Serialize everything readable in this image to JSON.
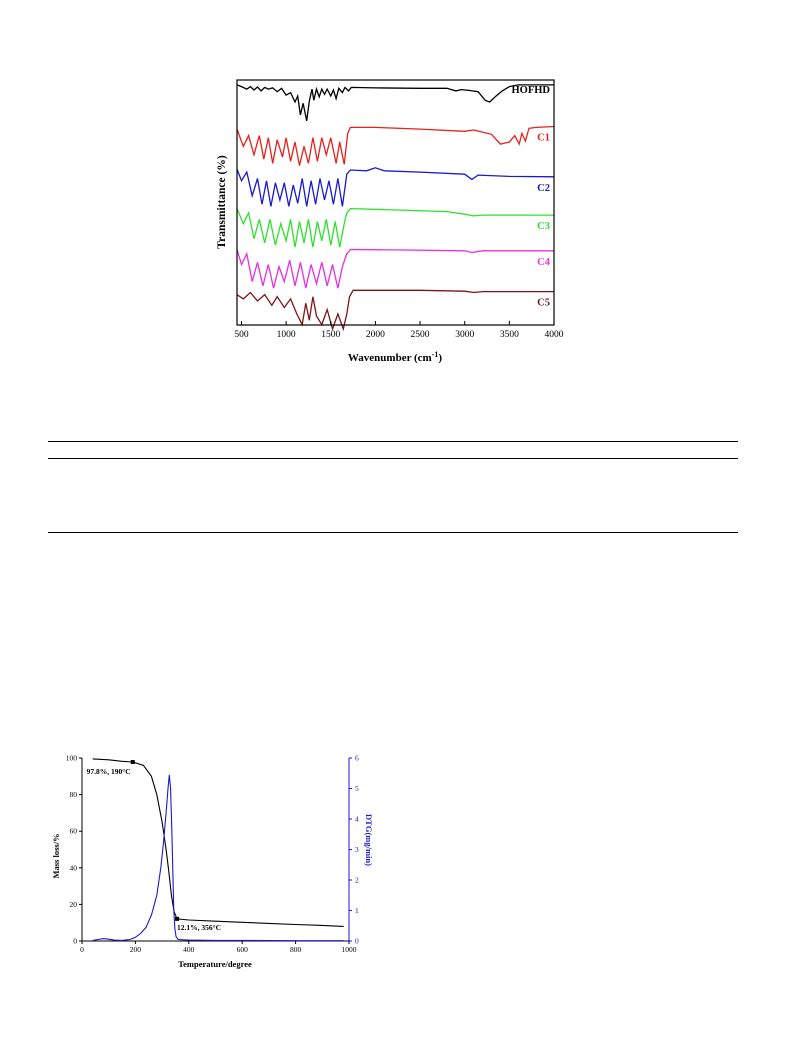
{
  "chart_data": [
    {
      "type": "line",
      "xlabel": "Wavenumber (cm",
      "xlabel_sup": "-1",
      "xlabel_suffix": ")",
      "ylabel": "Transmittance (%)",
      "xlim": [
        450,
        4000
      ],
      "x_ticks": [
        500,
        1000,
        1500,
        2000,
        2500,
        3000,
        3500,
        4000
      ],
      "grid": false,
      "legend": "labels at right end of each trace",
      "series": [
        {
          "name": "HOFHD",
          "color": "#000000",
          "baseline": 0.08,
          "points": [
            [
              450,
              0.02
            ],
            [
              500,
              0.06
            ],
            [
              560,
              0.12
            ],
            [
              600,
              0.06
            ],
            [
              640,
              0.14
            ],
            [
              680,
              0.07
            ],
            [
              720,
              0.16
            ],
            [
              760,
              0.08
            ],
            [
              800,
              0.12
            ],
            [
              850,
              0.09
            ],
            [
              900,
              0.18
            ],
            [
              950,
              0.1
            ],
            [
              1000,
              0.26
            ],
            [
              1050,
              0.2
            ],
            [
              1100,
              0.42
            ],
            [
              1130,
              0.28
            ],
            [
              1160,
              0.72
            ],
            [
              1190,
              0.45
            ],
            [
              1230,
              0.86
            ],
            [
              1260,
              0.4
            ],
            [
              1290,
              0.12
            ],
            [
              1310,
              0.38
            ],
            [
              1340,
              0.12
            ],
            [
              1370,
              0.3
            ],
            [
              1400,
              0.12
            ],
            [
              1430,
              0.24
            ],
            [
              1460,
              0.12
            ],
            [
              1500,
              0.28
            ],
            [
              1530,
              0.14
            ],
            [
              1560,
              0.34
            ],
            [
              1590,
              0.1
            ],
            [
              1630,
              0.2
            ],
            [
              1660,
              0.08
            ],
            [
              1700,
              0.16
            ],
            [
              1730,
              0.08
            ],
            [
              2000,
              0.09
            ],
            [
              2500,
              0.1
            ],
            [
              2800,
              0.1
            ],
            [
              2900,
              0.16
            ],
            [
              2960,
              0.13
            ],
            [
              3050,
              0.15
            ],
            [
              3150,
              0.18
            ],
            [
              3230,
              0.38
            ],
            [
              3280,
              0.42
            ],
            [
              3340,
              0.3
            ],
            [
              3420,
              0.16
            ],
            [
              3500,
              0.06
            ],
            [
              3600,
              0.02
            ],
            [
              4000,
              0.02
            ]
          ]
        },
        {
          "name": "C1",
          "color": "#e8211b",
          "baseline": 0.08,
          "points": [
            [
              450,
              0.1
            ],
            [
              520,
              0.5
            ],
            [
              580,
              0.25
            ],
            [
              640,
              0.7
            ],
            [
              700,
              0.25
            ],
            [
              750,
              0.8
            ],
            [
              800,
              0.3
            ],
            [
              850,
              0.9
            ],
            [
              900,
              0.35
            ],
            [
              960,
              0.75
            ],
            [
              1000,
              0.3
            ],
            [
              1050,
              0.85
            ],
            [
              1100,
              0.4
            ],
            [
              1150,
              0.95
            ],
            [
              1200,
              0.5
            ],
            [
              1250,
              0.9
            ],
            [
              1300,
              0.3
            ],
            [
              1350,
              0.85
            ],
            [
              1400,
              0.3
            ],
            [
              1450,
              0.7
            ],
            [
              1500,
              0.3
            ],
            [
              1560,
              0.9
            ],
            [
              1600,
              0.4
            ],
            [
              1650,
              0.92
            ],
            [
              1690,
              0.2
            ],
            [
              1720,
              0.06
            ],
            [
              2000,
              0.06
            ],
            [
              2500,
              0.1
            ],
            [
              3000,
              0.15
            ],
            [
              3100,
              0.12
            ],
            [
              3300,
              0.22
            ],
            [
              3400,
              0.45
            ],
            [
              3500,
              0.4
            ],
            [
              3560,
              0.25
            ],
            [
              3610,
              0.45
            ],
            [
              3640,
              0.2
            ],
            [
              3680,
              0.38
            ],
            [
              3720,
              0.08
            ],
            [
              3800,
              0.06
            ],
            [
              4000,
              0.04
            ]
          ]
        },
        {
          "name": "C2",
          "color": "#1a1ad0",
          "baseline": 0.08,
          "points": [
            [
              450,
              0.08
            ],
            [
              500,
              0.35
            ],
            [
              560,
              0.15
            ],
            [
              620,
              0.7
            ],
            [
              680,
              0.3
            ],
            [
              730,
              0.9
            ],
            [
              780,
              0.35
            ],
            [
              830,
              0.95
            ],
            [
              880,
              0.4
            ],
            [
              930,
              0.8
            ],
            [
              980,
              0.4
            ],
            [
              1030,
              0.95
            ],
            [
              1080,
              0.45
            ],
            [
              1130,
              0.88
            ],
            [
              1180,
              0.3
            ],
            [
              1230,
              0.95
            ],
            [
              1280,
              0.35
            ],
            [
              1330,
              0.9
            ],
            [
              1380,
              0.3
            ],
            [
              1430,
              0.8
            ],
            [
              1480,
              0.35
            ],
            [
              1530,
              0.9
            ],
            [
              1580,
              0.3
            ],
            [
              1630,
              0.95
            ],
            [
              1680,
              0.2
            ],
            [
              1720,
              0.1
            ],
            [
              1900,
              0.12
            ],
            [
              2000,
              0.05
            ],
            [
              2100,
              0.12
            ],
            [
              2500,
              0.15
            ],
            [
              3000,
              0.2
            ],
            [
              3080,
              0.32
            ],
            [
              3150,
              0.22
            ],
            [
              3500,
              0.25
            ],
            [
              4000,
              0.26
            ]
          ]
        },
        {
          "name": "C3",
          "color": "#2ee02e",
          "baseline": 0.08,
          "points": [
            [
              450,
              0.05
            ],
            [
              520,
              0.4
            ],
            [
              580,
              0.15
            ],
            [
              640,
              0.75
            ],
            [
              700,
              0.3
            ],
            [
              760,
              0.85
            ],
            [
              820,
              0.3
            ],
            [
              880,
              0.9
            ],
            [
              940,
              0.4
            ],
            [
              1000,
              0.8
            ],
            [
              1050,
              0.3
            ],
            [
              1100,
              0.95
            ],
            [
              1150,
              0.35
            ],
            [
              1200,
              0.85
            ],
            [
              1250,
              0.3
            ],
            [
              1300,
              0.95
            ],
            [
              1350,
              0.35
            ],
            [
              1400,
              0.8
            ],
            [
              1450,
              0.3
            ],
            [
              1500,
              0.9
            ],
            [
              1550,
              0.35
            ],
            [
              1600,
              0.95
            ],
            [
              1650,
              0.4
            ],
            [
              1680,
              0.15
            ],
            [
              1720,
              0.05
            ],
            [
              2200,
              0.08
            ],
            [
              2800,
              0.12
            ],
            [
              3000,
              0.18
            ],
            [
              3100,
              0.22
            ],
            [
              3200,
              0.2
            ],
            [
              4000,
              0.2
            ]
          ]
        },
        {
          "name": "C4",
          "color": "#e62ee6",
          "baseline": 0.08,
          "points": [
            [
              450,
              0.05
            ],
            [
              500,
              0.4
            ],
            [
              560,
              0.15
            ],
            [
              620,
              0.8
            ],
            [
              680,
              0.35
            ],
            [
              740,
              0.9
            ],
            [
              800,
              0.4
            ],
            [
              860,
              0.95
            ],
            [
              920,
              0.45
            ],
            [
              980,
              0.8
            ],
            [
              1040,
              0.3
            ],
            [
              1100,
              0.9
            ],
            [
              1160,
              0.35
            ],
            [
              1220,
              0.95
            ],
            [
              1280,
              0.4
            ],
            [
              1340,
              0.85
            ],
            [
              1400,
              0.35
            ],
            [
              1460,
              0.9
            ],
            [
              1520,
              0.4
            ],
            [
              1580,
              0.95
            ],
            [
              1630,
              0.45
            ],
            [
              1680,
              0.15
            ],
            [
              1720,
              0.05
            ],
            [
              2200,
              0.06
            ],
            [
              3000,
              0.08
            ],
            [
              3080,
              0.12
            ],
            [
              3200,
              0.08
            ],
            [
              4000,
              0.08
            ]
          ]
        },
        {
          "name": "C5",
          "color": "#7a1616",
          "baseline": 0.08,
          "points": [
            [
              450,
              0.15
            ],
            [
              520,
              0.25
            ],
            [
              600,
              0.1
            ],
            [
              680,
              0.3
            ],
            [
              760,
              0.15
            ],
            [
              840,
              0.4
            ],
            [
              900,
              0.2
            ],
            [
              980,
              0.45
            ],
            [
              1050,
              0.25
            ],
            [
              1120,
              0.6
            ],
            [
              1180,
              0.85
            ],
            [
              1220,
              0.35
            ],
            [
              1260,
              0.75
            ],
            [
              1300,
              0.2
            ],
            [
              1340,
              0.65
            ],
            [
              1400,
              0.85
            ],
            [
              1460,
              0.5
            ],
            [
              1520,
              0.95
            ],
            [
              1580,
              0.6
            ],
            [
              1640,
              0.95
            ],
            [
              1680,
              0.6
            ],
            [
              1710,
              0.2
            ],
            [
              1750,
              0.05
            ],
            [
              2500,
              0.05
            ],
            [
              3000,
              0.07
            ],
            [
              3100,
              0.1
            ],
            [
              3200,
              0.08
            ],
            [
              4000,
              0.08
            ]
          ]
        }
      ]
    },
    {
      "type": "line",
      "xlabel": "Temperature/degree",
      "ylabel": "Mass loss/%",
      "y2label": "DTG(mg/min)",
      "xlim": [
        0,
        1000
      ],
      "ylim": [
        0,
        100
      ],
      "y2lim": [
        0,
        6
      ],
      "x_ticks": [
        0,
        200,
        400,
        600,
        800,
        1000
      ],
      "y_ticks": [
        0,
        20,
        40,
        60,
        80,
        100
      ],
      "y2_ticks": [
        0,
        1,
        2,
        3,
        4,
        5,
        6
      ],
      "grid": false,
      "annotations": [
        {
          "text": "97.8%, 190°C",
          "x": 190,
          "y": 97.8
        },
        {
          "text": "12.1%, 356°C",
          "x": 356,
          "y": 12.1
        }
      ],
      "series": [
        {
          "name": "Mass loss",
          "axis": "left",
          "color": "#000000",
          "points": [
            [
              40,
              99.5
            ],
            [
              100,
              99
            ],
            [
              150,
              98.2
            ],
            [
              190,
              97.8
            ],
            [
              230,
              96
            ],
            [
              260,
              90
            ],
            [
              280,
              80
            ],
            [
              300,
              65
            ],
            [
              315,
              50
            ],
            [
              325,
              38
            ],
            [
              335,
              25
            ],
            [
              345,
              16
            ],
            [
              356,
              12.1
            ],
            [
              400,
              11.5
            ],
            [
              500,
              10.8
            ],
            [
              600,
              10.2
            ],
            [
              700,
              9.6
            ],
            [
              800,
              9.0
            ],
            [
              900,
              8.5
            ],
            [
              980,
              8.0
            ]
          ]
        },
        {
          "name": "DTG",
          "axis": "right",
          "color": "#1a1ad0",
          "points": [
            [
              40,
              0.02
            ],
            [
              60,
              0.05
            ],
            [
              80,
              0.08
            ],
            [
              100,
              0.06
            ],
            [
              120,
              0.03
            ],
            [
              150,
              0.02
            ],
            [
              180,
              0.05
            ],
            [
              200,
              0.12
            ],
            [
              220,
              0.25
            ],
            [
              240,
              0.45
            ],
            [
              260,
              0.85
            ],
            [
              280,
              1.5
            ],
            [
              295,
              2.4
            ],
            [
              305,
              3.2
            ],
            [
              315,
              4.2
            ],
            [
              322,
              5.0
            ],
            [
              327,
              5.45
            ],
            [
              332,
              5.0
            ],
            [
              336,
              3.8
            ],
            [
              340,
              2.3
            ],
            [
              344,
              1.0
            ],
            [
              348,
              0.4
            ],
            [
              352,
              0.15
            ],
            [
              360,
              0.05
            ],
            [
              400,
              0.03
            ],
            [
              500,
              0.02
            ],
            [
              600,
              0.02
            ],
            [
              800,
              0.01
            ],
            [
              980,
              0.01
            ]
          ]
        }
      ]
    }
  ]
}
